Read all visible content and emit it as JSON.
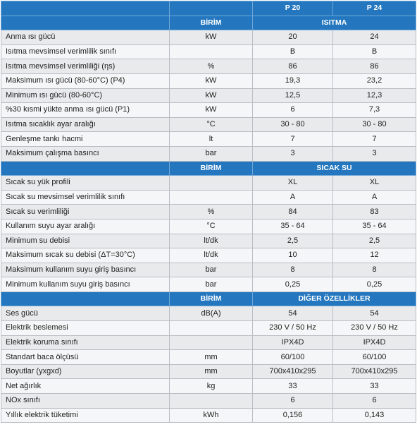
{
  "header": {
    "model_1": "P 20",
    "model_2": "P 24"
  },
  "sections": [
    {
      "unit_header": "BİRİM",
      "title": "ISITMA",
      "rows": [
        {
          "label": "Anma ısı gücü",
          "unit": "kW",
          "p20": "20",
          "p24": "24"
        },
        {
          "label": "Isıtma mevsimsel verimlilik sınıfı",
          "unit": "",
          "p20": "B",
          "p24": "B"
        },
        {
          "label": "Isıtma mevsimsel verimliliği (ηs)",
          "unit": "%",
          "p20": "86",
          "p24": "86"
        },
        {
          "label": "Maksimum ısı gücü (80-60°C) (P4)",
          "unit": "kW",
          "p20": "19,3",
          "p24": "23,2"
        },
        {
          "label": "Minimum ısı gücü (80-60°C)",
          "unit": "kW",
          "p20": "12,5",
          "p24": "12,3"
        },
        {
          "label": "%30 kısmi yükte anma ısı gücü (P1)",
          "unit": "kW",
          "p20": "6",
          "p24": "7,3"
        },
        {
          "label": "Isıtma sıcaklık ayar aralığı",
          "unit": "°C",
          "p20": "30 - 80",
          "p24": "30 - 80"
        },
        {
          "label": "Genleşme tankı hacmi",
          "unit": "lt",
          "p20": "7",
          "p24": "7"
        },
        {
          "label": "Maksimum çalışma basıncı",
          "unit": "bar",
          "p20": "3",
          "p24": "3"
        }
      ]
    },
    {
      "unit_header": "BİRİM",
      "title": "SICAK SU",
      "rows": [
        {
          "label": "Sıcak su yük profili",
          "unit": "",
          "p20": "XL",
          "p24": "XL"
        },
        {
          "label": "Sıcak su mevsimsel verimlilik sınıfı",
          "unit": "",
          "p20": "A",
          "p24": "A"
        },
        {
          "label": "Sıcak su verimliliği",
          "unit": "%",
          "p20": "84",
          "p24": "83"
        },
        {
          "label": "Kullanım suyu ayar aralığı",
          "unit": "°C",
          "p20": "35 - 64",
          "p24": "35 - 64"
        },
        {
          "label": "Minimum su debisi",
          "unit": "lt/dk",
          "p20": "2,5",
          "p24": "2,5"
        },
        {
          "label": "Maksimum sıcak su debisi (ΔT=30°C)",
          "unit": "lt/dk",
          "p20": "10",
          "p24": "12"
        },
        {
          "label": "Maksimum kullanım suyu giriş basıncı",
          "unit": "bar",
          "p20": "8",
          "p24": "8"
        },
        {
          "label": "Minimum kullanım suyu giriş basıncı",
          "unit": "bar",
          "p20": "0,25",
          "p24": "0,25"
        }
      ]
    },
    {
      "unit_header": "BİRİM",
      "title": "DİĞER ÖZELLİKLER",
      "rows": [
        {
          "label": "Ses gücü",
          "unit": "dB(A)",
          "p20": "54",
          "p24": "54"
        },
        {
          "label": "Elektrik beslemesi",
          "unit": "",
          "p20": "230 V / 50 Hz",
          "p24": "230 V / 50 Hz"
        },
        {
          "label": "Elektrik koruma sınıfı",
          "unit": "",
          "p20": "IPX4D",
          "p24": "IPX4D"
        },
        {
          "label": "Standart baca ölçüsü",
          "unit": "mm",
          "p20": "60/100",
          "p24": "60/100"
        },
        {
          "label": "Boyutlar (yxgxd)",
          "unit": "mm",
          "p20": "700x410x295",
          "p24": "700x410x295"
        },
        {
          "label": "Net ağırlık",
          "unit": "kg",
          "p20": "33",
          "p24": "33"
        },
        {
          "label": "NOx sınıfı",
          "unit": "",
          "p20": "6",
          "p24": "6"
        },
        {
          "label": "Yıllık elektrik tüketimi",
          "unit": "kWh",
          "p20": "0,156",
          "p24": "0,143"
        }
      ]
    }
  ]
}
